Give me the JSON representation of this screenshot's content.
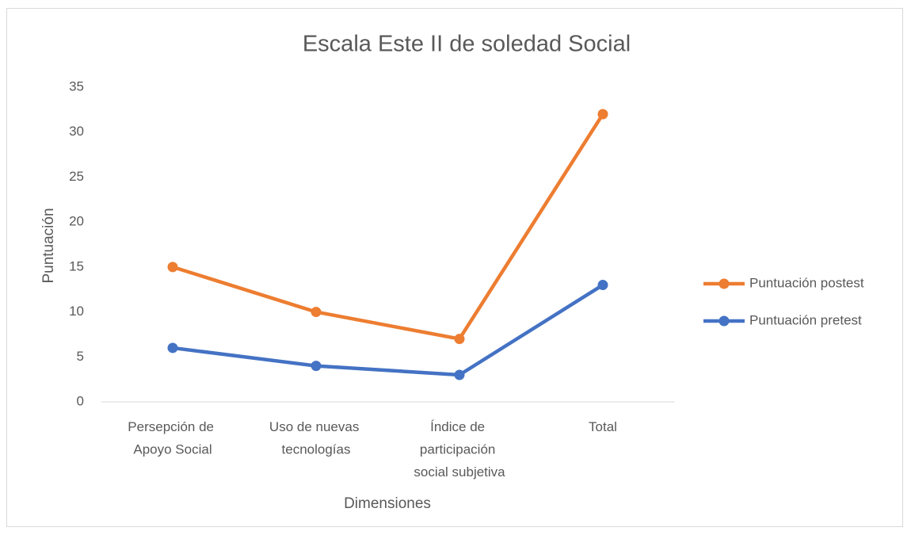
{
  "chart_data": {
    "type": "line",
    "title": "Escala Este II de soledad Social",
    "x_label": "Dimensiones",
    "y_label": "Puntuación",
    "categories": [
      "Persepción de Apoyo Social",
      "Uso de nuevas tecnologías",
      "Índice de participación social subjetiva",
      "Total"
    ],
    "series": [
      {
        "name": "Puntuación postest",
        "color": "#ed7d31",
        "values": [
          15,
          10,
          7,
          32
        ]
      },
      {
        "name": "Puntuación pretest",
        "color": "#4472c4",
        "values": [
          6,
          4,
          3,
          13
        ]
      }
    ],
    "ylim": [
      0,
      35
    ],
    "yticks": [
      0,
      5,
      10,
      15,
      20,
      25,
      30,
      35
    ],
    "grid": false,
    "legend": "right"
  }
}
